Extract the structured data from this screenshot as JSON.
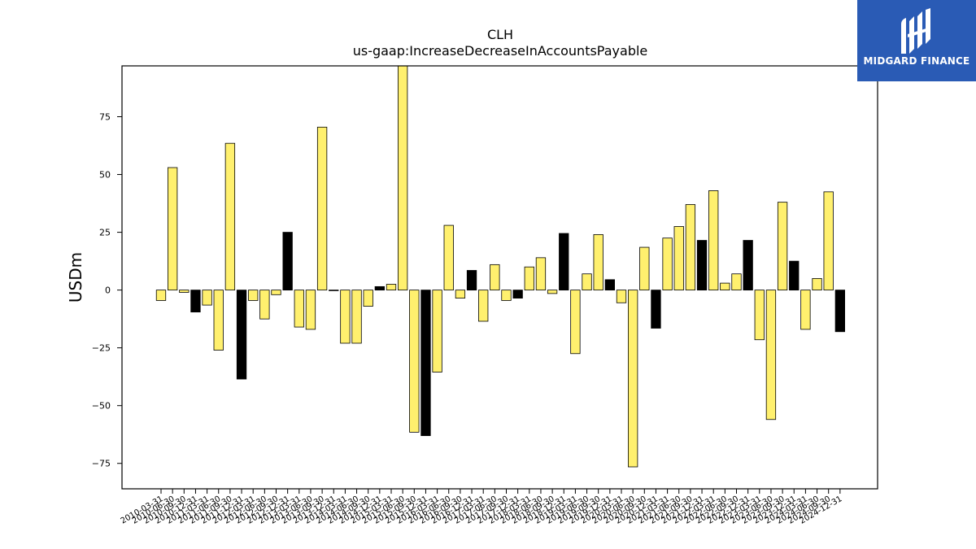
{
  "chart_data": {
    "type": "bar",
    "title": "CLH",
    "subtitle": "us-gaap:IncreaseDecreaseInAccountsPayable",
    "xlabel": "",
    "ylabel": "USDm",
    "ylim": [
      -86,
      97
    ],
    "yticks": [
      -75,
      -50,
      -25,
      0,
      25,
      50,
      75
    ],
    "grid": false,
    "colors": {
      "quarterly": "#fff06e",
      "annual": "#000000",
      "edge": "#000000"
    },
    "categories": [
      "2010-03-31",
      "2010-06-30",
      "2010-09-30",
      "2010-12-31",
      "2011-03-31",
      "2011-06-30",
      "2011-09-30",
      "2011-12-31",
      "2012-03-31",
      "2012-06-30",
      "2012-09-30",
      "2012-12-31",
      "2013-03-31",
      "2013-06-30",
      "2013-09-30",
      "2013-12-31",
      "2014-03-31",
      "2014-06-30",
      "2014-09-30",
      "2014-12-31",
      "2015-03-31",
      "2015-06-30",
      "2015-09-30",
      "2015-12-31",
      "2016-03-31",
      "2016-06-30",
      "2016-09-30",
      "2016-12-31",
      "2017-03-31",
      "2017-06-30",
      "2017-09-30",
      "2017-12-31",
      "2018-03-31",
      "2018-06-30",
      "2018-09-30",
      "2018-12-31",
      "2019-03-31",
      "2019-06-30",
      "2019-09-30",
      "2019-12-31",
      "2020-03-31",
      "2020-06-30",
      "2020-09-30",
      "2020-12-31",
      "2021-03-31",
      "2021-06-30",
      "2021-09-30",
      "2021-12-31",
      "2022-03-31",
      "2022-06-30",
      "2022-09-30",
      "2022-12-31",
      "2023-03-31",
      "2023-06-30",
      "2023-09-30",
      "2023-12-31",
      "2024-03-31",
      "2024-06-30",
      "2024-09-30",
      "2024-12-31"
    ],
    "values": [
      -4.5,
      53,
      -1,
      -9.5,
      -6.5,
      -26,
      63.5,
      -38.5,
      -4.5,
      -12.5,
      -2,
      25,
      -16,
      -17,
      70.5,
      0,
      -23,
      -23,
      -7,
      1.5,
      2.5,
      97,
      -61.5,
      -63,
      -35.5,
      28,
      -3.5,
      8.5,
      -13.5,
      11,
      -4.5,
      -3.5,
      10,
      14,
      -1.5,
      24.5,
      -27.5,
      7,
      24,
      4.5,
      -5.5,
      -76.5,
      18.5,
      -16.5,
      22.5,
      27.5,
      37,
      21.5,
      43,
      3,
      7,
      21.5,
      -21.5,
      -56,
      38,
      12.5,
      -17,
      5,
      42.5,
      -18
    ],
    "annual_flags": [
      false,
      false,
      false,
      true,
      false,
      false,
      false,
      true,
      false,
      false,
      false,
      true,
      false,
      false,
      false,
      true,
      false,
      false,
      false,
      true,
      false,
      false,
      false,
      true,
      false,
      false,
      false,
      true,
      false,
      false,
      false,
      true,
      false,
      false,
      false,
      true,
      false,
      false,
      false,
      true,
      false,
      false,
      false,
      true,
      false,
      false,
      false,
      true,
      false,
      false,
      false,
      true,
      false,
      false,
      false,
      true,
      false,
      false,
      false,
      true
    ]
  },
  "logo": {
    "text": "MIDGARD FINANCE",
    "mark": "midgard-logo-mark",
    "color": "#2a5bb5"
  }
}
